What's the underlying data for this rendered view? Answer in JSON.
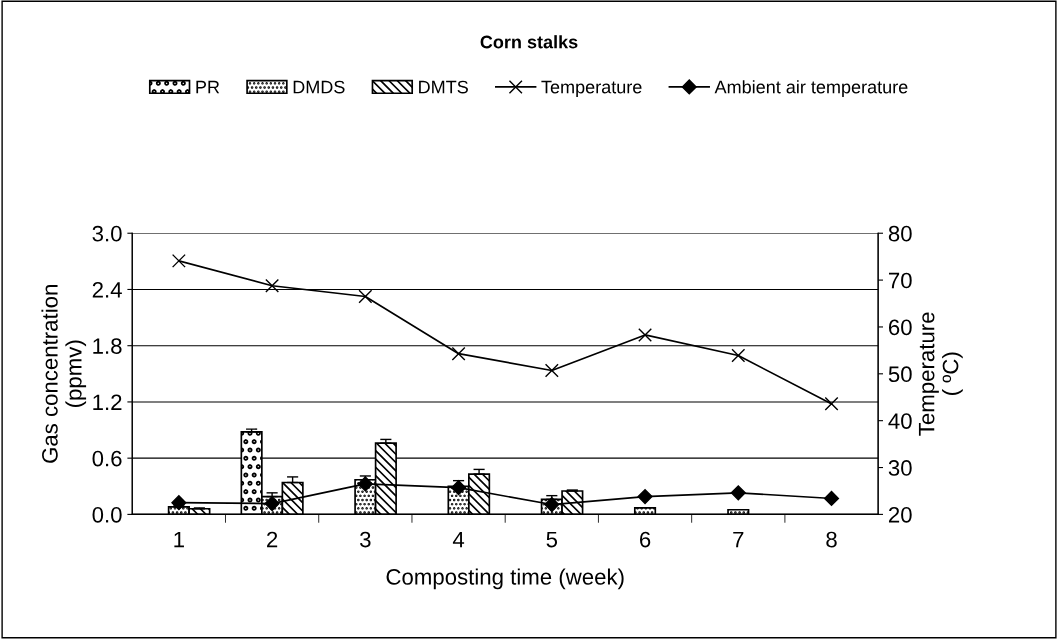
{
  "chart_data": {
    "type": "bar",
    "title": "Corn stalks",
    "xlabel": "Composting time (week)",
    "ylabel": "Gas concentration\n(ppmv)",
    "y2label": "Temperature\n( ºC)",
    "categories": [
      "1",
      "2",
      "3",
      "4",
      "5",
      "6",
      "7",
      "8"
    ],
    "series": [
      {
        "name": "PR",
        "color": "#000000",
        "values": [
          0,
          0.88,
          0,
          0,
          0,
          0,
          0,
          0
        ],
        "errors": [
          null,
          0.03,
          null,
          null,
          null,
          null,
          null,
          null
        ]
      },
      {
        "name": "DMDS",
        "color": "#000000",
        "values": [
          0.08,
          0.19,
          0.37,
          0.3,
          0.16,
          0.07,
          0.05,
          0
        ],
        "errors": [
          0.02,
          0.04,
          0.04,
          0.06,
          0.04,
          null,
          null,
          null
        ]
      },
      {
        "name": "DMTS",
        "color": "#000000",
        "values": [
          0.06,
          0.34,
          0.76,
          0.43,
          0.25,
          0,
          0,
          0
        ],
        "errors": [
          0.01,
          0.06,
          0.04,
          0.05,
          0.01,
          null,
          null,
          null
        ]
      },
      {
        "name": "Temperature",
        "type": "line",
        "axis": "y2",
        "color": "#000000",
        "marker": "cross",
        "values": [
          74.1,
          68.8,
          66.5,
          54.3,
          50.7,
          58.3,
          53.9,
          43.6
        ]
      },
      {
        "name": "Ambient air temperature",
        "type": "line",
        "axis": "y2",
        "color": "#000000",
        "marker": "diamond",
        "values": [
          22.5,
          22.3,
          26.5,
          25.7,
          22.1,
          23.8,
          24.6,
          23.4
        ]
      }
    ],
    "ylim": [
      0,
      3.0
    ],
    "yticks": [
      {
        "value": 0,
        "label": "0.0"
      },
      0.6,
      1.2,
      1.8,
      2.4,
      {
        "value": 3,
        "label": "3.0"
      }
    ],
    "y2lim": [
      20,
      80
    ],
    "y2ticks": [
      20,
      30,
      40,
      50,
      60,
      70,
      80
    ],
    "grid": "y",
    "legend": "top"
  }
}
